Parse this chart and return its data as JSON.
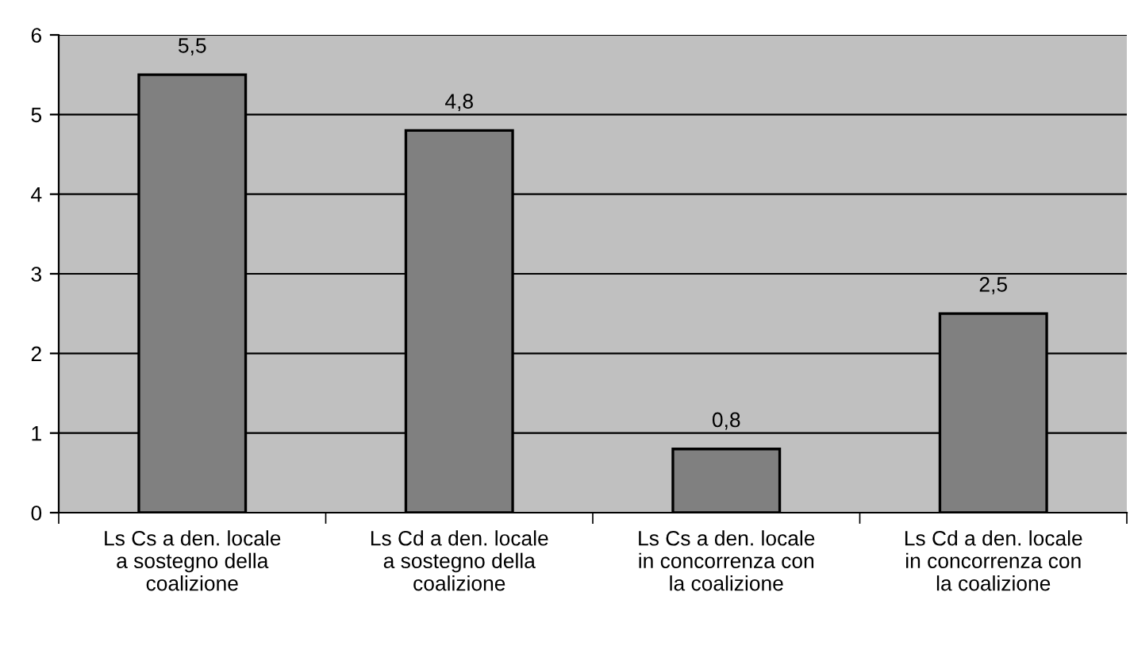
{
  "chart_data": {
    "type": "bar",
    "categories": [
      "Ls Cs a den. locale\na sostegno della\ncoalizione",
      "Ls Cd a den. locale\na sostegno della\ncoalizione",
      "Ls Cs a den. locale\nin concorrenza con\nla coalizione",
      "Ls Cd a den. locale\nin concorrenza con\nla coalizione"
    ],
    "values": [
      5.5,
      4.8,
      0.8,
      2.5
    ],
    "value_labels": [
      "5,5",
      "4,8",
      "0,8",
      "2,5"
    ],
    "color": "#808080",
    "ylim": [
      0,
      6
    ],
    "yticks": [
      0,
      1,
      2,
      3,
      4,
      5,
      6
    ],
    "grid": "y",
    "legend": false
  }
}
